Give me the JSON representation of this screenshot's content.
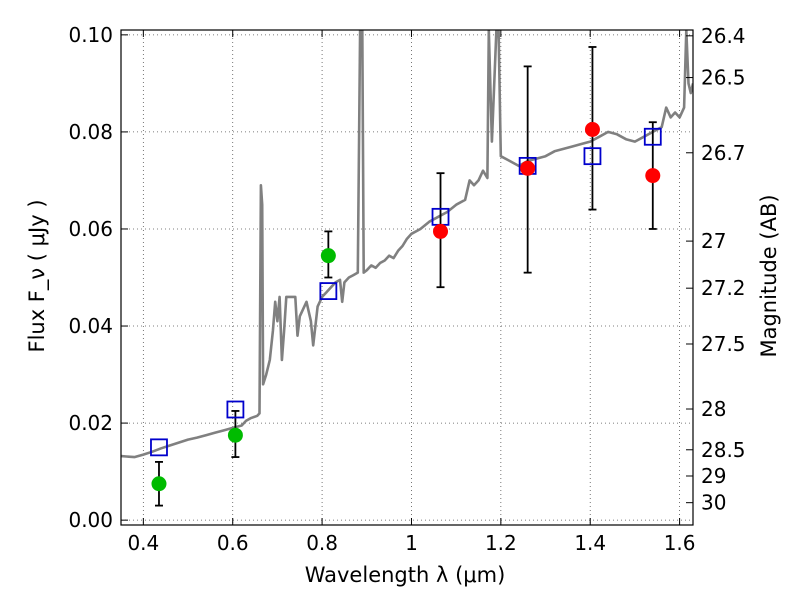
{
  "chart_data": {
    "type": "scatter",
    "xlabel": "Wavelength  λ (μm)",
    "ylabel_left": "Flux  F_ν  ( μJy )",
    "ylabel_right": "Magnitude (AB)",
    "xlim": [
      0.35,
      1.63
    ],
    "ylim": [
      -0.001,
      0.101
    ],
    "grid": true,
    "x_ticks": [
      0.4,
      0.6,
      0.8,
      1.0,
      1.2,
      1.4,
      1.6
    ],
    "x_tick_labels": [
      "0.4",
      "0.6",
      "0.8",
      "1",
      "1.2",
      "1.4",
      "1.6"
    ],
    "y_ticks": [
      0.0,
      0.02,
      0.04,
      0.06,
      0.08,
      0.1
    ],
    "y_tick_labels": [
      "0.00",
      "0.02",
      "0.04",
      "0.06",
      "0.08",
      "0.10"
    ],
    "right_axis": {
      "labels": [
        "26.4",
        "26.5",
        "26.7",
        "27",
        "27.2",
        "27.5",
        "28",
        "28.5",
        "29",
        "30"
      ],
      "flux_positions": [
        0.0998,
        0.0912,
        0.0757,
        0.0575,
        0.0478,
        0.0363,
        0.0229,
        0.0145,
        0.0091,
        0.0036
      ]
    },
    "series": [
      {
        "name": "model spectrum",
        "kind": "line",
        "color": "#808080",
        "points": [
          [
            0.35,
            0.0132
          ],
          [
            0.38,
            0.013
          ],
          [
            0.4,
            0.0135
          ],
          [
            0.42,
            0.0141
          ],
          [
            0.44,
            0.0148
          ],
          [
            0.46,
            0.0154
          ],
          [
            0.48,
            0.016
          ],
          [
            0.5,
            0.0166
          ],
          [
            0.52,
            0.017
          ],
          [
            0.54,
            0.0175
          ],
          [
            0.56,
            0.018
          ],
          [
            0.58,
            0.0185
          ],
          [
            0.6,
            0.019
          ],
          [
            0.62,
            0.0195
          ],
          [
            0.63,
            0.0205
          ],
          [
            0.64,
            0.021
          ],
          [
            0.655,
            0.0215
          ],
          [
            0.66,
            0.022
          ],
          [
            0.663,
            0.069
          ],
          [
            0.666,
            0.065
          ],
          [
            0.668,
            0.028
          ],
          [
            0.675,
            0.03
          ],
          [
            0.683,
            0.033
          ],
          [
            0.69,
            0.039
          ],
          [
            0.695,
            0.045
          ],
          [
            0.7,
            0.041
          ],
          [
            0.705,
            0.046
          ],
          [
            0.71,
            0.033
          ],
          [
            0.715,
            0.039
          ],
          [
            0.72,
            0.046
          ],
          [
            0.74,
            0.046
          ],
          [
            0.745,
            0.038
          ],
          [
            0.75,
            0.042
          ],
          [
            0.765,
            0.045
          ],
          [
            0.775,
            0.041
          ],
          [
            0.78,
            0.036
          ],
          [
            0.79,
            0.044
          ],
          [
            0.8,
            0.046
          ],
          [
            0.81,
            0.047
          ],
          [
            0.82,
            0.048
          ],
          [
            0.83,
            0.049
          ],
          [
            0.84,
            0.0495
          ],
          [
            0.845,
            0.045
          ],
          [
            0.85,
            0.049
          ],
          [
            0.86,
            0.05
          ],
          [
            0.87,
            0.0505
          ],
          [
            0.88,
            0.051
          ],
          [
            0.885,
            0.101
          ],
          [
            0.89,
            0.101
          ],
          [
            0.893,
            0.051
          ],
          [
            0.9,
            0.0515
          ],
          [
            0.91,
            0.0525
          ],
          [
            0.92,
            0.052
          ],
          [
            0.93,
            0.053
          ],
          [
            0.94,
            0.0535
          ],
          [
            0.95,
            0.0545
          ],
          [
            0.96,
            0.054
          ],
          [
            0.97,
            0.0555
          ],
          [
            0.98,
            0.0565
          ],
          [
            0.99,
            0.058
          ],
          [
            1.0,
            0.059
          ],
          [
            1.02,
            0.06
          ],
          [
            1.04,
            0.0615
          ],
          [
            1.06,
            0.0625
          ],
          [
            1.08,
            0.0635
          ],
          [
            1.1,
            0.065
          ],
          [
            1.12,
            0.066
          ],
          [
            1.13,
            0.07
          ],
          [
            1.14,
            0.069
          ],
          [
            1.15,
            0.07
          ],
          [
            1.16,
            0.072
          ],
          [
            1.17,
            0.0705
          ],
          [
            1.173,
            0.101
          ],
          [
            1.18,
            0.078
          ],
          [
            1.19,
            0.101
          ],
          [
            1.195,
            0.101
          ],
          [
            1.2,
            0.075
          ],
          [
            1.22,
            0.074
          ],
          [
            1.24,
            0.073
          ],
          [
            1.26,
            0.074
          ],
          [
            1.28,
            0.0745
          ],
          [
            1.3,
            0.075
          ],
          [
            1.32,
            0.076
          ],
          [
            1.34,
            0.0765
          ],
          [
            1.36,
            0.077
          ],
          [
            1.38,
            0.0775
          ],
          [
            1.4,
            0.078
          ],
          [
            1.42,
            0.079
          ],
          [
            1.44,
            0.08
          ],
          [
            1.46,
            0.0795
          ],
          [
            1.48,
            0.0785
          ],
          [
            1.5,
            0.078
          ],
          [
            1.52,
            0.079
          ],
          [
            1.54,
            0.08
          ],
          [
            1.56,
            0.081
          ],
          [
            1.57,
            0.085
          ],
          [
            1.58,
            0.083
          ],
          [
            1.59,
            0.084
          ],
          [
            1.6,
            0.083
          ],
          [
            1.61,
            0.085
          ],
          [
            1.615,
            0.101
          ],
          [
            1.62,
            0.09
          ],
          [
            1.625,
            0.088
          ],
          [
            1.63,
            0.09
          ]
        ]
      },
      {
        "name": "model photometry",
        "kind": "square",
        "color": "#0000cc",
        "x": [
          0.435,
          0.606,
          0.814,
          1.065,
          1.26,
          1.405,
          1.54
        ],
        "y": [
          0.015,
          0.0228,
          0.0472,
          0.0625,
          0.073,
          0.075,
          0.079
        ]
      },
      {
        "name": "observed (green)",
        "kind": "circle",
        "color": "#00bb00",
        "x": [
          0.435,
          0.606,
          0.814
        ],
        "y": [
          0.0075,
          0.0175,
          0.0545
        ],
        "yerr_low": [
          0.0045,
          0.0045,
          0.0045
        ],
        "yerr_high": [
          0.0045,
          0.005,
          0.005
        ]
      },
      {
        "name": "observed (red)",
        "kind": "circle",
        "color": "#ff0000",
        "x": [
          1.065,
          1.26,
          1.405,
          1.54
        ],
        "y": [
          0.0595,
          0.0725,
          0.0805,
          0.071
        ],
        "yerr_low": [
          0.0115,
          0.0215,
          0.0165,
          0.011
        ],
        "yerr_high": [
          0.012,
          0.021,
          0.017,
          0.011
        ]
      }
    ]
  }
}
